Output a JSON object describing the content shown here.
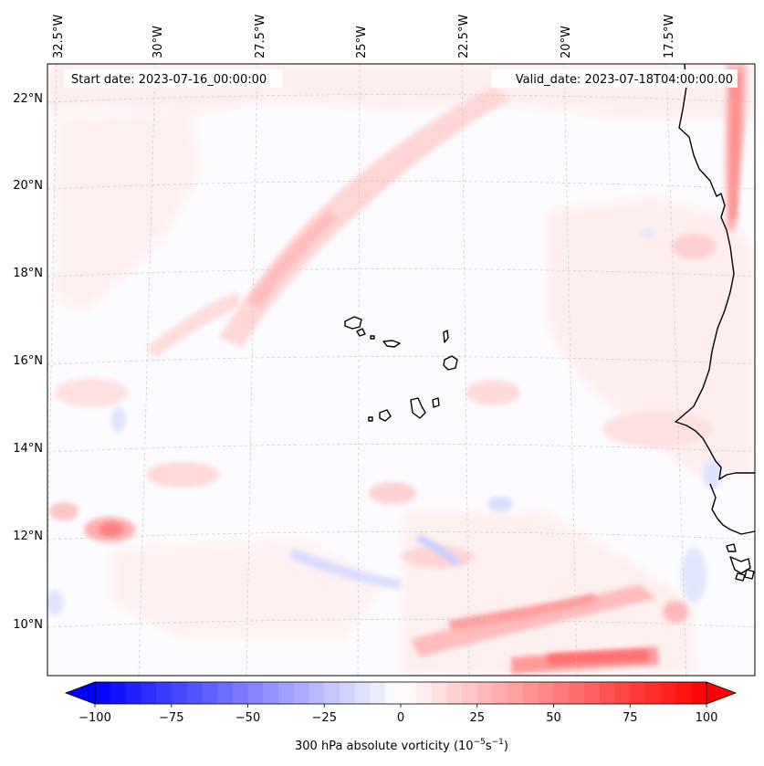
{
  "map": {
    "start_date": "Start date: 2023-07-16_00:00:00",
    "valid_date": "Valid_date: 2023-07-18T04:00:00.00",
    "lon_labels": [
      "32.5°W",
      "30°W",
      "27.5°W",
      "25°W",
      "22.5°W",
      "20°W",
      "17.5°W"
    ],
    "lat_labels": [
      "22°N",
      "20°N",
      "18°N",
      "16°N",
      "14°N",
      "12°N",
      "10°N"
    ],
    "islands": [
      "Santo Antão",
      "São Vicente",
      "Santa Luzia",
      "São Nicolau",
      "Sal",
      "Boa Vista",
      "Maio",
      "Santiago",
      "Fogo",
      "Brava"
    ],
    "colors": {
      "coast": "#000000",
      "grid": "#c8c8c8",
      "positive": "#ff0000",
      "negative": "#0000ff",
      "neutral": "#ffffff"
    }
  },
  "colorbar": {
    "label_prefix": "300 hPa absolute vorticity (10",
    "label_exp1": "−5",
    "label_mid": "s",
    "label_exp2": "−1",
    "label_suffix": ")",
    "ticks": [
      "−100",
      "−75",
      "−50",
      "−25",
      "0",
      "25",
      "50",
      "75",
      "100"
    ],
    "tick_values": [
      -100,
      -75,
      -50,
      -25,
      0,
      25,
      50,
      75,
      100
    ],
    "min": -100,
    "max": 100,
    "levels": 40
  },
  "chart_data": {
    "type": "heatmap",
    "title": "",
    "variable": "300 hPa absolute vorticity",
    "units": "10^-5 s^-1",
    "lon_range": [
      -33,
      -15.5
    ],
    "lat_range": [
      9,
      22.8
    ],
    "value_range": [
      -100,
      100
    ],
    "start_date": "2023-07-16_00:00:00",
    "valid_date": "2023-07-18T04:00:00.00"
  }
}
